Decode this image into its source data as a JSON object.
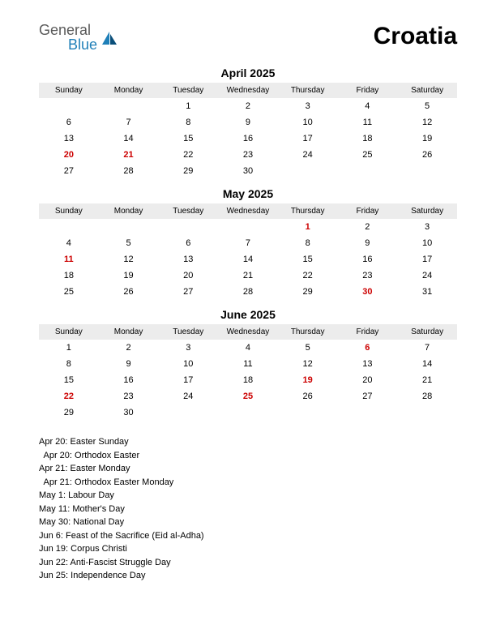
{
  "header": {
    "logo_general": "General",
    "logo_blue": "Blue",
    "country": "Croatia"
  },
  "weekdays": [
    "Sunday",
    "Monday",
    "Tuesday",
    "Wednesday",
    "Thursday",
    "Friday",
    "Saturday"
  ],
  "months": [
    {
      "title": "April 2025",
      "weeks": [
        [
          {
            "d": ""
          },
          {
            "d": ""
          },
          {
            "d": "1"
          },
          {
            "d": "2"
          },
          {
            "d": "3"
          },
          {
            "d": "4"
          },
          {
            "d": "5"
          }
        ],
        [
          {
            "d": "6"
          },
          {
            "d": "7"
          },
          {
            "d": "8"
          },
          {
            "d": "9"
          },
          {
            "d": "10"
          },
          {
            "d": "11"
          },
          {
            "d": "12"
          }
        ],
        [
          {
            "d": "13"
          },
          {
            "d": "14"
          },
          {
            "d": "15"
          },
          {
            "d": "16"
          },
          {
            "d": "17"
          },
          {
            "d": "18"
          },
          {
            "d": "19"
          }
        ],
        [
          {
            "d": "20",
            "h": true
          },
          {
            "d": "21",
            "h": true
          },
          {
            "d": "22"
          },
          {
            "d": "23"
          },
          {
            "d": "24"
          },
          {
            "d": "25"
          },
          {
            "d": "26"
          }
        ],
        [
          {
            "d": "27"
          },
          {
            "d": "28"
          },
          {
            "d": "29"
          },
          {
            "d": "30"
          },
          {
            "d": ""
          },
          {
            "d": ""
          },
          {
            "d": ""
          }
        ]
      ]
    },
    {
      "title": "May 2025",
      "weeks": [
        [
          {
            "d": ""
          },
          {
            "d": ""
          },
          {
            "d": ""
          },
          {
            "d": ""
          },
          {
            "d": "1",
            "h": true
          },
          {
            "d": "2"
          },
          {
            "d": "3"
          }
        ],
        [
          {
            "d": "4"
          },
          {
            "d": "5"
          },
          {
            "d": "6"
          },
          {
            "d": "7"
          },
          {
            "d": "8"
          },
          {
            "d": "9"
          },
          {
            "d": "10"
          }
        ],
        [
          {
            "d": "11",
            "h": true
          },
          {
            "d": "12"
          },
          {
            "d": "13"
          },
          {
            "d": "14"
          },
          {
            "d": "15"
          },
          {
            "d": "16"
          },
          {
            "d": "17"
          }
        ],
        [
          {
            "d": "18"
          },
          {
            "d": "19"
          },
          {
            "d": "20"
          },
          {
            "d": "21"
          },
          {
            "d": "22"
          },
          {
            "d": "23"
          },
          {
            "d": "24"
          }
        ],
        [
          {
            "d": "25"
          },
          {
            "d": "26"
          },
          {
            "d": "27"
          },
          {
            "d": "28"
          },
          {
            "d": "29"
          },
          {
            "d": "30",
            "h": true
          },
          {
            "d": "31"
          }
        ]
      ]
    },
    {
      "title": "June 2025",
      "weeks": [
        [
          {
            "d": "1"
          },
          {
            "d": "2"
          },
          {
            "d": "3"
          },
          {
            "d": "4"
          },
          {
            "d": "5"
          },
          {
            "d": "6",
            "h": true
          },
          {
            "d": "7"
          }
        ],
        [
          {
            "d": "8"
          },
          {
            "d": "9"
          },
          {
            "d": "10"
          },
          {
            "d": "11"
          },
          {
            "d": "12"
          },
          {
            "d": "13"
          },
          {
            "d": "14"
          }
        ],
        [
          {
            "d": "15"
          },
          {
            "d": "16"
          },
          {
            "d": "17"
          },
          {
            "d": "18"
          },
          {
            "d": "19",
            "h": true
          },
          {
            "d": "20"
          },
          {
            "d": "21"
          }
        ],
        [
          {
            "d": "22",
            "h": true
          },
          {
            "d": "23"
          },
          {
            "d": "24"
          },
          {
            "d": "25",
            "h": true
          },
          {
            "d": "26"
          },
          {
            "d": "27"
          },
          {
            "d": "28"
          }
        ],
        [
          {
            "d": "29"
          },
          {
            "d": "30"
          },
          {
            "d": ""
          },
          {
            "d": ""
          },
          {
            "d": ""
          },
          {
            "d": ""
          },
          {
            "d": ""
          }
        ]
      ]
    }
  ],
  "holidays": [
    "Apr 20: Easter Sunday",
    "  Apr 20: Orthodox Easter",
    "Apr 21: Easter Monday",
    "  Apr 21: Orthodox Easter Monday",
    "May 1: Labour Day",
    "May 11: Mother's Day",
    "May 30: National Day",
    "Jun 6: Feast of the Sacrifice (Eid al-Adha)",
    "Jun 19: Corpus Christi",
    "Jun 22: Anti-Fascist Struggle Day",
    "Jun 25: Independence Day"
  ],
  "colors": {
    "holiday_text": "#cc0000",
    "header_bg": "#ececec",
    "text": "#000000",
    "logo_gray": "#5a5a5a",
    "logo_blue": "#1f7fb8"
  },
  "typography": {
    "country_fontsize_pt": 30,
    "month_title_fontsize_pt": 14,
    "weekday_fontsize_pt": 10,
    "day_fontsize_pt": 11,
    "holiday_list_fontsize_pt": 11
  }
}
